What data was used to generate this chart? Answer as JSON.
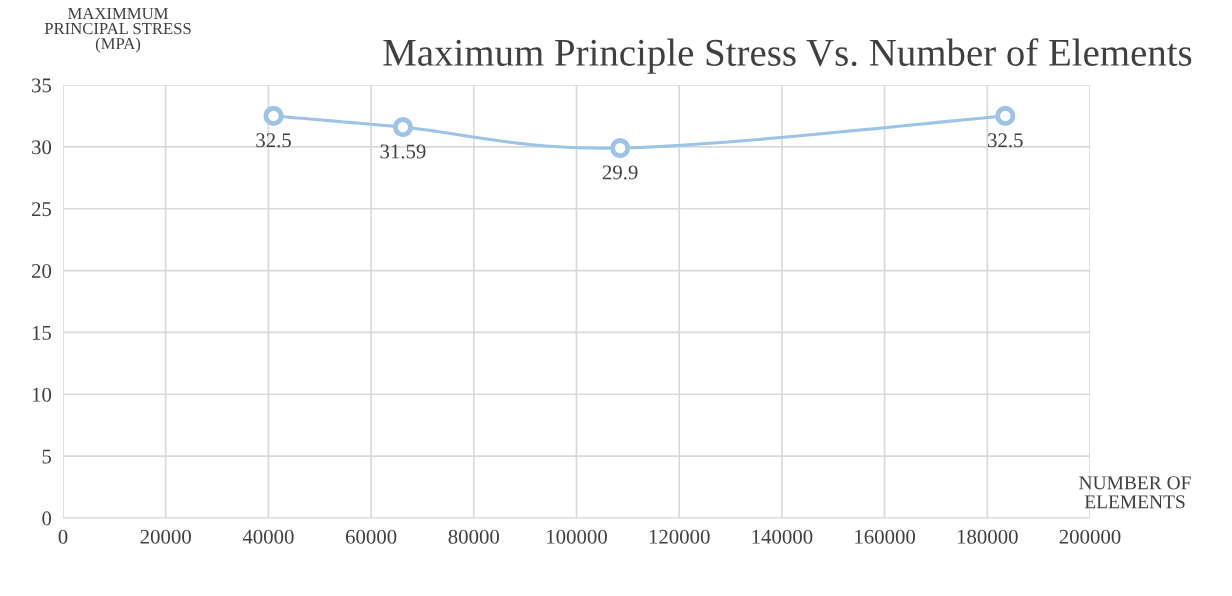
{
  "chart_data": {
    "type": "line",
    "title": "Maximum Principle Stress Vs. Number of Elements",
    "ylabel": "MAXIMMUM\nPRINCIPAL STRESS\n(MPA)",
    "xlabel": "NUMBER OF\nELEMENTS",
    "x": [
      41000,
      66200,
      108500,
      183500
    ],
    "series": [
      {
        "color": "#9dc3e6",
        "values": [
          32.5,
          31.59,
          29.9,
          32.5
        ]
      }
    ],
    "data_labels": true,
    "marker": "circle",
    "line_style": "solid",
    "grid": true,
    "xlim": [
      0,
      200000
    ],
    "xticks": [
      0,
      20000,
      40000,
      60000,
      80000,
      100000,
      120000,
      140000,
      160000,
      180000,
      200000
    ],
    "ylim": [
      0,
      35
    ],
    "yticks": [
      0,
      5,
      10,
      15,
      20,
      25,
      30,
      35
    ]
  }
}
